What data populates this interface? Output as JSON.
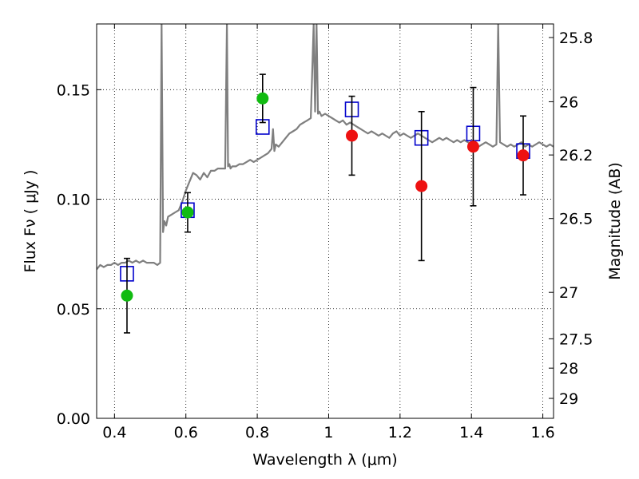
{
  "chart_data": {
    "type": "scatter",
    "title": "",
    "xlabel": "Wavelength  λ (μm)",
    "ylabel": "Flux  Fν  ( μJy )",
    "y2label": "Magnitude (AB)",
    "xlim": [
      0.35,
      1.63
    ],
    "ylim": [
      0.0,
      0.18
    ],
    "x_ticks": [
      0.4,
      0.6,
      0.8,
      1.0,
      1.2,
      1.4,
      1.6
    ],
    "x_tick_labels": [
      "0.4",
      "0.6",
      "0.8",
      "1",
      "1.2",
      "1.4",
      "1.6"
    ],
    "y_ticks": [
      0.0,
      0.05,
      0.1,
      0.15
    ],
    "y_tick_labels": [
      "0.00",
      "0.05",
      "0.10",
      "0.15"
    ],
    "mag_ticks": [
      {
        "label": "25.8",
        "flux": 0.1738
      },
      {
        "label": "26",
        "flux": 0.1445
      },
      {
        "label": "26.2",
        "flux": 0.1202
      },
      {
        "label": "26.5",
        "flux": 0.0912
      },
      {
        "label": "27",
        "flux": 0.0575
      },
      {
        "label": "27.5",
        "flux": 0.0363
      },
      {
        "label": "28",
        "flux": 0.0229
      },
      {
        "label": "29",
        "flux": 0.0091
      }
    ],
    "grid": true,
    "series": [
      {
        "kind": "line",
        "color": "#7f7f7f",
        "x": [
          0.35,
          0.36,
          0.37,
          0.38,
          0.39,
          0.4,
          0.41,
          0.42,
          0.43,
          0.44,
          0.45,
          0.46,
          0.47,
          0.48,
          0.49,
          0.5,
          0.51,
          0.52,
          0.528,
          0.532,
          0.536,
          0.54,
          0.545,
          0.55,
          0.56,
          0.57,
          0.58,
          0.59,
          0.6,
          0.61,
          0.62,
          0.63,
          0.64,
          0.65,
          0.66,
          0.67,
          0.68,
          0.69,
          0.7,
          0.71,
          0.715,
          0.718,
          0.722,
          0.725,
          0.73,
          0.74,
          0.75,
          0.76,
          0.77,
          0.78,
          0.79,
          0.8,
          0.81,
          0.82,
          0.83,
          0.84,
          0.844,
          0.848,
          0.852,
          0.86,
          0.87,
          0.88,
          0.89,
          0.9,
          0.91,
          0.92,
          0.93,
          0.94,
          0.95,
          0.958,
          0.962,
          0.966,
          0.97,
          0.974,
          0.98,
          0.99,
          1.0,
          1.01,
          1.02,
          1.03,
          1.04,
          1.05,
          1.06,
          1.07,
          1.08,
          1.09,
          1.1,
          1.11,
          1.12,
          1.13,
          1.14,
          1.15,
          1.16,
          1.17,
          1.18,
          1.19,
          1.2,
          1.21,
          1.22,
          1.23,
          1.24,
          1.25,
          1.26,
          1.27,
          1.28,
          1.29,
          1.3,
          1.31,
          1.32,
          1.33,
          1.34,
          1.35,
          1.36,
          1.37,
          1.38,
          1.39,
          1.4,
          1.41,
          1.42,
          1.43,
          1.44,
          1.45,
          1.46,
          1.47,
          1.475,
          1.48,
          1.49,
          1.5,
          1.51,
          1.52,
          1.53,
          1.54,
          1.55,
          1.56,
          1.57,
          1.58,
          1.59,
          1.6,
          1.61,
          1.62,
          1.63
        ],
        "y": [
          0.068,
          0.07,
          0.069,
          0.07,
          0.07,
          0.071,
          0.07,
          0.071,
          0.071,
          0.072,
          0.071,
          0.072,
          0.071,
          0.072,
          0.071,
          0.071,
          0.071,
          0.07,
          0.071,
          0.18,
          0.085,
          0.09,
          0.088,
          0.092,
          0.093,
          0.094,
          0.095,
          0.099,
          0.104,
          0.108,
          0.112,
          0.111,
          0.109,
          0.112,
          0.11,
          0.113,
          0.113,
          0.114,
          0.114,
          0.114,
          0.18,
          0.115,
          0.116,
          0.114,
          0.115,
          0.115,
          0.116,
          0.116,
          0.117,
          0.118,
          0.117,
          0.118,
          0.119,
          0.12,
          0.121,
          0.123,
          0.132,
          0.122,
          0.125,
          0.124,
          0.126,
          0.128,
          0.13,
          0.131,
          0.132,
          0.134,
          0.135,
          0.136,
          0.137,
          0.18,
          0.14,
          0.18,
          0.139,
          0.14,
          0.138,
          0.139,
          0.138,
          0.137,
          0.136,
          0.135,
          0.136,
          0.134,
          0.135,
          0.134,
          0.133,
          0.132,
          0.131,
          0.13,
          0.131,
          0.13,
          0.129,
          0.13,
          0.129,
          0.128,
          0.13,
          0.131,
          0.129,
          0.13,
          0.129,
          0.128,
          0.129,
          0.13,
          0.129,
          0.128,
          0.127,
          0.126,
          0.127,
          0.128,
          0.127,
          0.128,
          0.127,
          0.126,
          0.127,
          0.126,
          0.127,
          0.126,
          0.125,
          0.126,
          0.124,
          0.125,
          0.126,
          0.125,
          0.124,
          0.125,
          0.18,
          0.126,
          0.125,
          0.124,
          0.125,
          0.124,
          0.125,
          0.126,
          0.124,
          0.125,
          0.124,
          0.125,
          0.126,
          0.125,
          0.124,
          0.125,
          0.124
        ]
      },
      {
        "kind": "squares",
        "color": "#0000cc",
        "x": [
          0.435,
          0.605,
          0.815,
          1.065,
          1.26,
          1.405,
          1.545
        ],
        "y": [
          0.066,
          0.095,
          0.133,
          0.141,
          0.128,
          0.13,
          0.122
        ]
      },
      {
        "kind": "points",
        "color": "#11bb11",
        "x": [
          0.435,
          0.605,
          0.815
        ],
        "y": [
          0.056,
          0.094,
          0.146
        ],
        "err": [
          0.017,
          0.009,
          0.011
        ]
      },
      {
        "kind": "points",
        "color": "#ee1111",
        "x": [
          1.065,
          1.26,
          1.405,
          1.545
        ],
        "y": [
          0.129,
          0.106,
          0.124,
          0.12
        ],
        "err": [
          0.018,
          0.034,
          0.027,
          0.018
        ]
      }
    ]
  }
}
